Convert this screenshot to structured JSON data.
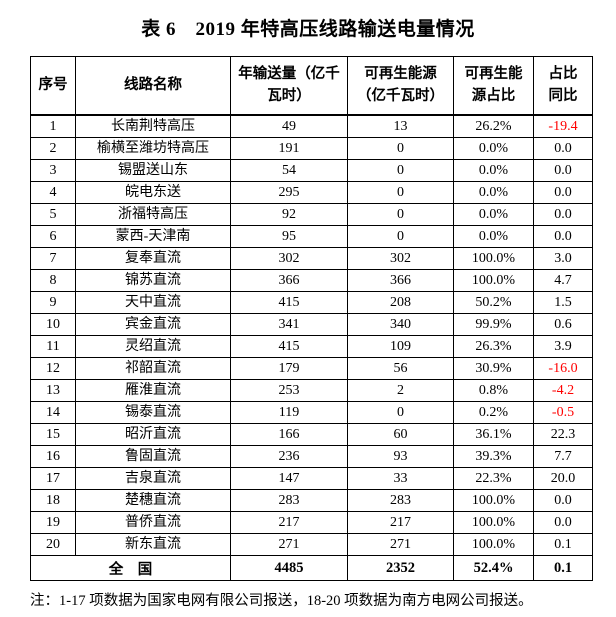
{
  "title": "表 6　2019 年特高压线路输送电量情况",
  "table": {
    "headers": [
      "序号",
      "线路名称",
      "年输送量（亿千\n瓦时）",
      "可再生能源\n（亿千瓦时）",
      "可再生能\n源占比",
      "占比\n同比"
    ],
    "rows": [
      {
        "no": "1",
        "name": "长南荆特高压",
        "annual": "49",
        "renewable": "13",
        "share": "26.2%",
        "yoy": "-19.4"
      },
      {
        "no": "2",
        "name": "榆横至潍坊特高压",
        "annual": "191",
        "renewable": "0",
        "share": "0.0%",
        "yoy": "0.0"
      },
      {
        "no": "3",
        "name": "锡盟送山东",
        "annual": "54",
        "renewable": "0",
        "share": "0.0%",
        "yoy": "0.0"
      },
      {
        "no": "4",
        "name": "皖电东送",
        "annual": "295",
        "renewable": "0",
        "share": "0.0%",
        "yoy": "0.0"
      },
      {
        "no": "5",
        "name": "浙福特高压",
        "annual": "92",
        "renewable": "0",
        "share": "0.0%",
        "yoy": "0.0"
      },
      {
        "no": "6",
        "name": "蒙西-天津南",
        "annual": "95",
        "renewable": "0",
        "share": "0.0%",
        "yoy": "0.0"
      },
      {
        "no": "7",
        "name": "复奉直流",
        "annual": "302",
        "renewable": "302",
        "share": "100.0%",
        "yoy": "3.0"
      },
      {
        "no": "8",
        "name": "锦苏直流",
        "annual": "366",
        "renewable": "366",
        "share": "100.0%",
        "yoy": "4.7"
      },
      {
        "no": "9",
        "name": "天中直流",
        "annual": "415",
        "renewable": "208",
        "share": "50.2%",
        "yoy": "1.5"
      },
      {
        "no": "10",
        "name": "宾金直流",
        "annual": "341",
        "renewable": "340",
        "share": "99.9%",
        "yoy": "0.6"
      },
      {
        "no": "11",
        "name": "灵绍直流",
        "annual": "415",
        "renewable": "109",
        "share": "26.3%",
        "yoy": "3.9"
      },
      {
        "no": "12",
        "name": "祁韶直流",
        "annual": "179",
        "renewable": "56",
        "share": "30.9%",
        "yoy": "-16.0"
      },
      {
        "no": "13",
        "name": "雁淮直流",
        "annual": "253",
        "renewable": "2",
        "share": "0.8%",
        "yoy": "-4.2"
      },
      {
        "no": "14",
        "name": "锡泰直流",
        "annual": "119",
        "renewable": "0",
        "share": "0.2%",
        "yoy": "-0.5"
      },
      {
        "no": "15",
        "name": "昭沂直流",
        "annual": "166",
        "renewable": "60",
        "share": "36.1%",
        "yoy": "22.3"
      },
      {
        "no": "16",
        "name": "鲁固直流",
        "annual": "236",
        "renewable": "93",
        "share": "39.3%",
        "yoy": "7.7"
      },
      {
        "no": "17",
        "name": "吉泉直流",
        "annual": "147",
        "renewable": "33",
        "share": "22.3%",
        "yoy": "20.0"
      },
      {
        "no": "18",
        "name": "楚穗直流",
        "annual": "283",
        "renewable": "283",
        "share": "100.0%",
        "yoy": "0.0"
      },
      {
        "no": "19",
        "name": "普侨直流",
        "annual": "217",
        "renewable": "217",
        "share": "100.0%",
        "yoy": "0.0"
      },
      {
        "no": "20",
        "name": "新东直流",
        "annual": "271",
        "renewable": "271",
        "share": "100.0%",
        "yoy": "0.1"
      }
    ],
    "total": {
      "label": "全　国",
      "annual": "4485",
      "renewable": "2352",
      "share": "52.4%",
      "yoy": "0.1"
    }
  },
  "footnote": "注：1-17 项数据为国家电网有限公司报送，18-20 项数据为南方电网公司报送。",
  "colors": {
    "negative_value": "#ff0000",
    "text": "#000000",
    "border": "#000000",
    "background": "#ffffff"
  }
}
